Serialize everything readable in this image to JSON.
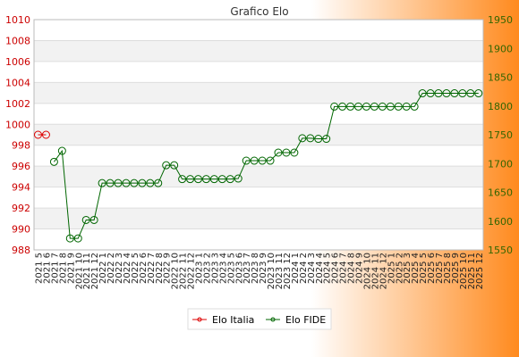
{
  "chart_data": {
    "type": "line",
    "title": "Grafico Elo",
    "categories": [
      "2021 5",
      "2021 6",
      "2021 7",
      "2021 8",
      "2021 9",
      "2021 10",
      "2021 11",
      "2021 12",
      "2022 1",
      "2022 2",
      "2022 3",
      "2022 4",
      "2022 5",
      "2022 6",
      "2022 7",
      "2022 8",
      "2022 9",
      "2022 10",
      "2022 11",
      "2022 12",
      "2023 1",
      "2023 2",
      "2023 3",
      "2023 4",
      "2023 5",
      "2023 6",
      "2023 7",
      "2023 8",
      "2023 9",
      "2023 10",
      "2023 11",
      "2023 12",
      "2024 1",
      "2024 2",
      "2024 3",
      "2024 4",
      "2024 5",
      "2024 6",
      "2024 7",
      "2024 8",
      "2024 9",
      "2024 10",
      "2024 11",
      "2024 12",
      "2025 1",
      "2025 2",
      "2025 3",
      "2025 4",
      "2025 5",
      "2025 6",
      "2025 7",
      "2025 8",
      "2025 9",
      "2025 10",
      "2025 11",
      "2025 12"
    ],
    "left_axis": {
      "min": 988,
      "max": 1010,
      "ticks": [
        988,
        990,
        992,
        994,
        996,
        998,
        1000,
        1002,
        1004,
        1006,
        1008,
        1010
      ],
      "color": "#cc0000"
    },
    "right_axis": {
      "min": 1550,
      "max": 1950,
      "ticks": [
        1550,
        1600,
        1650,
        1700,
        1750,
        1800,
        1850,
        1900,
        1950
      ],
      "color": "#336600"
    },
    "grid": true,
    "legend_position": "bottom",
    "series": [
      {
        "name": "Elo Italia",
        "axis": "left",
        "color": "#dd0000",
        "x": [
          0,
          1
        ],
        "values": [
          999,
          999
        ]
      },
      {
        "name": "Elo FIDE",
        "axis": "right",
        "color": "#006600",
        "x": [
          2,
          3,
          4,
          5,
          6,
          7,
          8,
          9,
          10,
          11,
          12,
          13,
          14,
          15,
          16,
          17,
          18,
          19,
          20,
          21,
          22,
          23,
          24,
          25,
          26,
          27,
          28,
          29,
          30,
          31,
          32,
          33,
          34,
          35,
          36,
          37,
          38,
          39,
          40,
          41,
          42,
          43,
          44,
          45,
          46,
          47,
          48,
          49,
          50,
          51,
          52,
          53,
          54,
          55
        ],
        "values": [
          1703,
          1722,
          1570,
          1570,
          1602,
          1602,
          1666,
          1666,
          1666,
          1666,
          1666,
          1666,
          1666,
          1666,
          1697,
          1697,
          1673,
          1673,
          1673,
          1673,
          1673,
          1673,
          1673,
          1674,
          1705,
          1705,
          1705,
          1705,
          1719,
          1719,
          1719,
          1744,
          1744,
          1743,
          1743,
          1799,
          1799,
          1799,
          1799,
          1799,
          1799,
          1799,
          1799,
          1799,
          1799,
          1799,
          1822,
          1822,
          1822,
          1822,
          1822,
          1822,
          1822,
          1822
        ]
      }
    ]
  }
}
